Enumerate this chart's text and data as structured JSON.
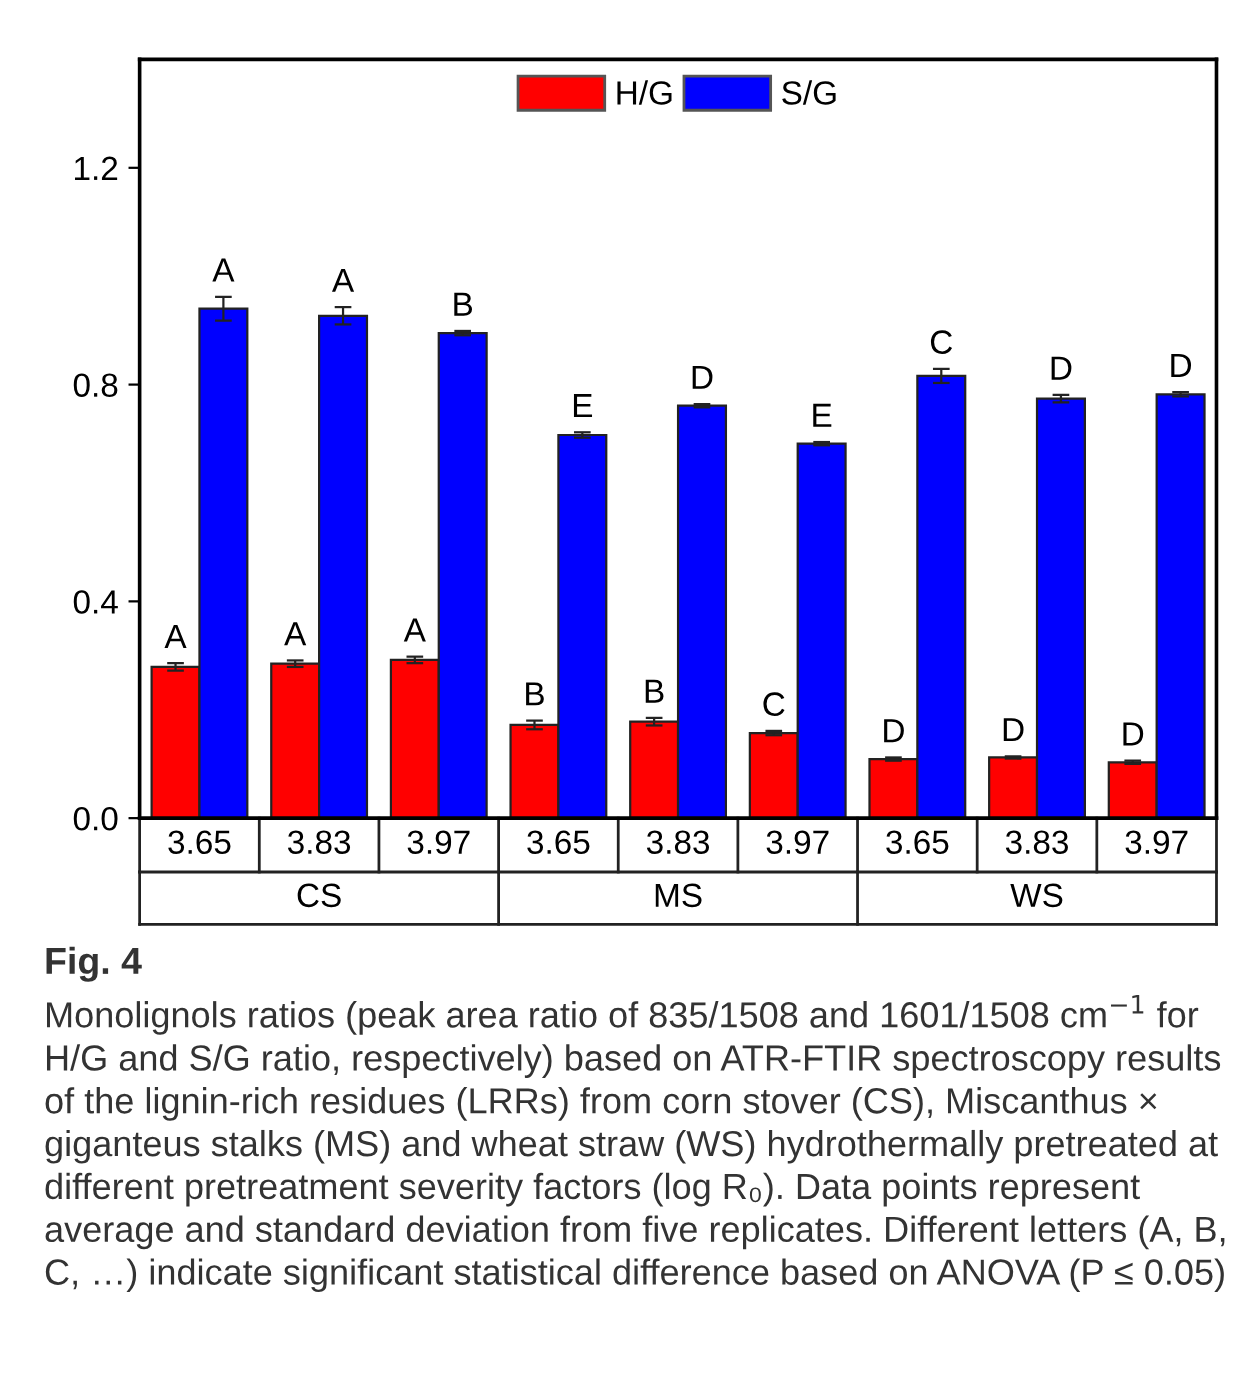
{
  "chart_data": {
    "type": "bar",
    "title": "Fig. 4",
    "categories": [
      "3.65",
      "3.83",
      "3.97",
      "3.65",
      "3.83",
      "3.97",
      "3.65",
      "3.83",
      "3.97"
    ],
    "series": [
      {
        "name": "H/G",
        "color": "#ff0000",
        "values": [
          0.279,
          0.285,
          0.292,
          0.172,
          0.178,
          0.157,
          0.109,
          0.112,
          0.103
        ],
        "errors": [
          0.007,
          0.006,
          0.006,
          0.008,
          0.007,
          0.004,
          0.003,
          0.002,
          0.003
        ],
        "value_labels": [
          "A",
          "A",
          "A",
          "B",
          "B",
          "C",
          "D",
          "D",
          "D"
        ]
      },
      {
        "name": "S/G",
        "color": "#0000ff",
        "values": [
          0.94,
          0.927,
          0.895,
          0.707,
          0.761,
          0.691,
          0.816,
          0.774,
          0.782
        ],
        "errors": [
          0.022,
          0.016,
          0.004,
          0.005,
          0.003,
          0.003,
          0.013,
          0.007,
          0.004
        ],
        "value_labels": [
          "A",
          "A",
          "B",
          "E",
          "D",
          "E",
          "C",
          "D",
          "D"
        ]
      }
    ],
    "ylim": [
      0,
      1.4
    ],
    "yticks": [
      {
        "value": 0,
        "label": "0.0"
      },
      {
        "value": 0.4,
        "label": "0.4"
      },
      {
        "value": 0.8,
        "label": "0.8"
      },
      {
        "value": 1.2,
        "label": "1.2"
      }
    ],
    "legend": "top",
    "grid": false,
    "annotations": [
      "CS",
      "MS",
      "WS",
      "Monolignols ratios (peak area ratio of 835/1508 and 1601/1508 cm$^{−1}$ for H/G and S/G ratio, respectively) based on ATR-FTIR spectroscopy results of the lignin-rich residues (LRRs) from corn stover (CS), Miscanthus × giganteus stalks (MS) and wheat straw (WS) hydrothermally pretreated at different pretreatment severity factors (log R₀). Data points represent average and standard deviation from five replicates. Different letters (A, B, C, …) indicate significant statistical difference based on ANOVA (P ≤ 0.05)"
    ]
  }
}
